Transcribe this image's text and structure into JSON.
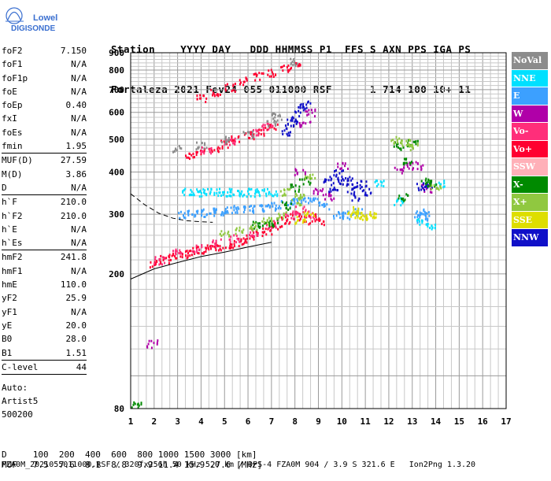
{
  "logo": {
    "line1": "Lowell",
    "line2": "DIGISONDE"
  },
  "header": {
    "labels": "Station    YYYY DAY   DDD HHMMSS P1  FFS S AXN PPS IGA PS",
    "values": "Fortaleza 2021 Fev24 055 011000 RSF      1 714 100 10+ 11"
  },
  "params": [
    {
      "name": "foF2",
      "value": "7.150"
    },
    {
      "name": "foF1",
      "value": "N/A"
    },
    {
      "name": "foF1p",
      "value": "N/A"
    },
    {
      "name": "foE",
      "value": "N/A"
    },
    {
      "name": "foEp",
      "value": "0.40"
    },
    {
      "name": "fxI",
      "value": "N/A"
    },
    {
      "name": "foEs",
      "value": "N/A"
    },
    {
      "name": "fmin",
      "value": "1.95"
    },
    {
      "name": "MUF(D)",
      "value": "27.59"
    },
    {
      "name": "M(D)",
      "value": "3.86"
    },
    {
      "name": "D",
      "value": "N/A"
    },
    {
      "name": "h`F",
      "value": "210.0"
    },
    {
      "name": "h`F2",
      "value": "210.0"
    },
    {
      "name": "h`E",
      "value": "N/A"
    },
    {
      "name": "h`Es",
      "value": "N/A"
    },
    {
      "name": "hmF2",
      "value": "241.8"
    },
    {
      "name": "hmF1",
      "value": "N/A"
    },
    {
      "name": "hmE",
      "value": "110.0"
    },
    {
      "name": "yF2",
      "value": "25.9"
    },
    {
      "name": "yF1",
      "value": "N/A"
    },
    {
      "name": "yE",
      "value": "20.0"
    },
    {
      "name": "B0",
      "value": "28.0"
    },
    {
      "name": "B1",
      "value": "1.51"
    },
    {
      "name": "C-level",
      "value": "44"
    }
  ],
  "auto": {
    "line1": "Auto:",
    "line2": "Artist5",
    "line3": "500200"
  },
  "legend": [
    {
      "label": "NoVal",
      "color": "#8c8c8c"
    },
    {
      "label": "NNE",
      "color": "#00e0ff"
    },
    {
      "label": "E",
      "color": "#3ca0ff"
    },
    {
      "label": "W",
      "color": "#b000a8"
    },
    {
      "label": "Vo-",
      "color": "#ff2e7a"
    },
    {
      "label": "Vo+",
      "color": "#ff0030"
    },
    {
      "label": "SSW",
      "color": "#ffb0b8"
    },
    {
      "label": "X-",
      "color": "#008a00"
    },
    {
      "label": "X+",
      "color": "#90c840"
    },
    {
      "label": "SSE",
      "color": "#dede00"
    },
    {
      "label": "NNW",
      "color": "#1010c8"
    }
  ],
  "footer": {
    "d_label": "D",
    "d_values": "100  200  400  600  800 1000 1500 3000 [km]",
    "muf_label": "MUF",
    "muf_values": "7.5  7.6  8.1  8.8  9.9 11.4 15.9 27.6 [MHz]",
    "file": "FZA0M_2021055011000.RSF / 320fx256h 50 kHz 5.0 km / DPS-4 FZA0M 904 / 3.9 S 321.6 E   Ion2Png 1.3.20"
  },
  "chart_data": {
    "type": "scatter",
    "xlim": [
      1,
      17
    ],
    "ylim": [
      80,
      900
    ],
    "x_ticks": [
      "1",
      "2",
      "3",
      "4",
      "5",
      "6",
      "7",
      "8",
      "9",
      "10",
      "11",
      "12",
      "13",
      "14",
      "15",
      "16",
      "17"
    ],
    "y_ticks": [
      "80",
      "200",
      "300",
      "400",
      "500",
      "600",
      "700",
      "800",
      "900"
    ],
    "y_scale": "log",
    "grid": true,
    "legend_position": "right",
    "trace_curve": {
      "x": [
        1.0,
        2.0,
        3.0,
        4.0,
        5.0,
        6.0,
        7.0
      ],
      "y": [
        193,
        207,
        216,
        225,
        232,
        240,
        248
      ]
    },
    "trace_curve_dashed": {
      "x": [
        1.0,
        1.6,
        2.2,
        2.8,
        3.4,
        4.0,
        4.5
      ],
      "y": [
        345,
        320,
        302,
        292,
        287,
        285,
        284
      ]
    },
    "series": [
      {
        "name": "Vo+",
        "color": "#ff0030",
        "points": [
          [
            2.0,
            215
          ],
          [
            2.4,
            222
          ],
          [
            2.8,
            226
          ],
          [
            3.2,
            230
          ],
          [
            3.6,
            234
          ],
          [
            4.0,
            236
          ],
          [
            4.4,
            238
          ],
          [
            4.8,
            242
          ],
          [
            5.2,
            246
          ],
          [
            5.6,
            250
          ],
          [
            6.0,
            255
          ],
          [
            6.4,
            262
          ],
          [
            6.8,
            270
          ],
          [
            7.2,
            280
          ],
          [
            7.6,
            290
          ],
          [
            8.0,
            300
          ],
          [
            8.4,
            290
          ],
          [
            8.8,
            295
          ],
          [
            9.2,
            288
          ],
          [
            3.5,
            450
          ],
          [
            4.0,
            460
          ],
          [
            4.5,
            470
          ],
          [
            5.0,
            485
          ],
          [
            5.5,
            500
          ],
          [
            6.0,
            515
          ],
          [
            6.5,
            530
          ],
          [
            7.0,
            545
          ],
          [
            4.0,
            665
          ],
          [
            4.6,
            690
          ],
          [
            5.2,
            715
          ],
          [
            5.8,
            745
          ],
          [
            6.4,
            770
          ],
          [
            7.0,
            790
          ],
          [
            7.6,
            815
          ],
          [
            8.0,
            830
          ]
        ]
      },
      {
        "name": "Vo-",
        "color": "#ff2e7a",
        "points": [
          [
            2.2,
            220
          ],
          [
            3.0,
            232
          ],
          [
            3.8,
            240
          ],
          [
            4.6,
            248
          ],
          [
            5.4,
            256
          ],
          [
            6.2,
            266
          ],
          [
            7.0,
            282
          ],
          [
            7.8,
            300
          ],
          [
            8.2,
            310
          ],
          [
            8.6,
            300
          ],
          [
            4.2,
            465
          ],
          [
            5.2,
            495
          ],
          [
            6.2,
            525
          ],
          [
            6.8,
            545
          ]
        ]
      },
      {
        "name": "E",
        "color": "#3ca0ff",
        "points": [
          [
            3.2,
            300
          ],
          [
            3.6,
            302
          ],
          [
            4.0,
            304
          ],
          [
            4.4,
            306
          ],
          [
            4.8,
            308
          ],
          [
            5.2,
            310
          ],
          [
            5.6,
            312
          ],
          [
            6.0,
            313
          ],
          [
            6.4,
            314
          ],
          [
            6.8,
            316
          ],
          [
            7.2,
            318
          ],
          [
            7.6,
            322
          ],
          [
            8.0,
            330
          ],
          [
            8.4,
            335
          ],
          [
            8.8,
            330
          ],
          [
            9.2,
            320
          ],
          [
            9.8,
            300
          ],
          [
            10.2,
            300
          ],
          [
            10.6,
            305
          ],
          [
            13.3,
            300
          ],
          [
            13.4,
            290
          ],
          [
            13.5,
            305
          ]
        ]
      },
      {
        "name": "NNE",
        "color": "#00e0ff",
        "points": [
          [
            3.4,
            350
          ],
          [
            3.8,
            350
          ],
          [
            4.2,
            350
          ],
          [
            4.6,
            350
          ],
          [
            5.0,
            350
          ],
          [
            5.4,
            350
          ],
          [
            5.8,
            350
          ],
          [
            6.2,
            350
          ],
          [
            6.6,
            350
          ],
          [
            7.0,
            350
          ],
          [
            11.6,
            370
          ],
          [
            12.4,
            330
          ],
          [
            13.4,
            285
          ],
          [
            13.8,
            280
          ],
          [
            14.2,
            370
          ]
        ]
      },
      {
        "name": "W",
        "color": "#b000a8",
        "points": [
          [
            8.2,
            400
          ],
          [
            8.4,
            560
          ],
          [
            8.6,
            600
          ],
          [
            9.0,
            350
          ],
          [
            9.4,
            340
          ],
          [
            10.0,
            420
          ],
          [
            12.4,
            410
          ],
          [
            12.8,
            420
          ],
          [
            13.2,
            420
          ],
          [
            13.6,
            360
          ],
          [
            1.9,
            125
          ]
        ]
      },
      {
        "name": "NNW",
        "color": "#1010c8",
        "points": [
          [
            7.6,
            530
          ],
          [
            7.8,
            560
          ],
          [
            8.0,
            580
          ],
          [
            8.2,
            620
          ],
          [
            8.4,
            640
          ],
          [
            9.4,
            380
          ],
          [
            9.6,
            360
          ],
          [
            10.0,
            380
          ],
          [
            10.2,
            380
          ],
          [
            10.4,
            360
          ],
          [
            10.6,
            340
          ],
          [
            10.8,
            370
          ],
          [
            11.0,
            350
          ],
          [
            9.8,
            400
          ],
          [
            13.4,
            365
          ],
          [
            13.6,
            370
          ]
        ]
      },
      {
        "name": "X-",
        "color": "#008a00",
        "points": [
          [
            6.4,
            280
          ],
          [
            6.8,
            285
          ],
          [
            7.2,
            285
          ],
          [
            7.6,
            320
          ],
          [
            8.0,
            360
          ],
          [
            8.4,
            380
          ],
          [
            12.4,
            480
          ],
          [
            12.8,
            430
          ],
          [
            13.0,
            490
          ],
          [
            13.6,
            380
          ],
          [
            12.6,
            340
          ],
          [
            13.8,
            370
          ],
          [
            1.2,
            82
          ]
        ]
      },
      {
        "name": "X+",
        "color": "#90c840",
        "points": [
          [
            5.0,
            265
          ],
          [
            5.6,
            270
          ],
          [
            6.2,
            278
          ],
          [
            6.8,
            290
          ],
          [
            7.4,
            300
          ],
          [
            8.0,
            330
          ],
          [
            8.2,
            345
          ],
          [
            7.6,
            350
          ],
          [
            8.6,
            390
          ],
          [
            12.3,
            500
          ],
          [
            12.7,
            490
          ],
          [
            13.0,
            480
          ],
          [
            14.0,
            360
          ]
        ]
      },
      {
        "name": "SSE",
        "color": "#dede00",
        "points": [
          [
            8.2,
            290
          ],
          [
            8.6,
            300
          ],
          [
            10.4,
            300
          ],
          [
            10.8,
            298
          ],
          [
            11.0,
            296
          ],
          [
            11.2,
            300
          ],
          [
            10.6,
            310
          ]
        ]
      },
      {
        "name": "NoVal",
        "color": "#8c8c8c",
        "points": [
          [
            3.0,
            470
          ],
          [
            4.0,
            480
          ],
          [
            5.0,
            500
          ],
          [
            6.0,
            520
          ],
          [
            7.0,
            560
          ],
          [
            7.2,
            590
          ],
          [
            8.0,
            850
          ]
        ]
      }
    ]
  }
}
